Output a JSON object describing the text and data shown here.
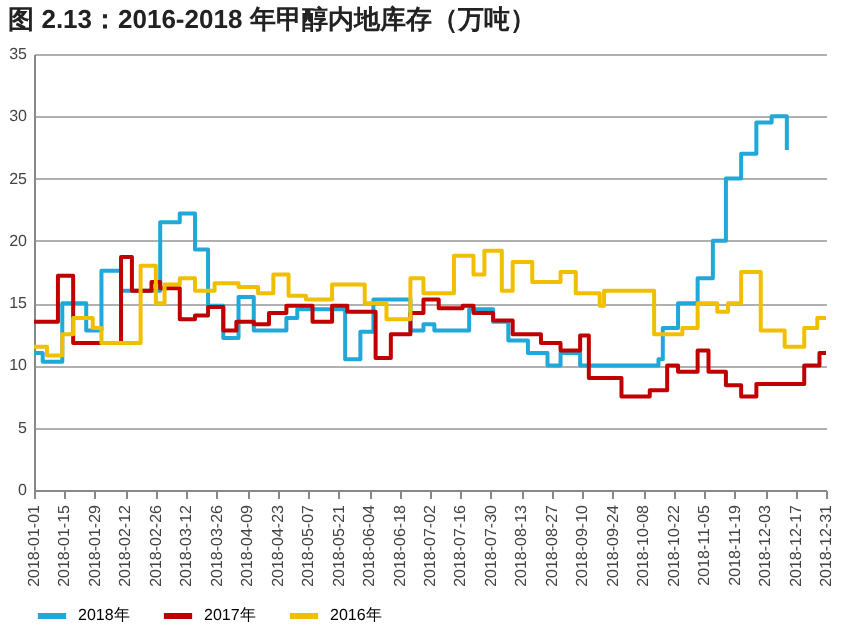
{
  "chart_data": {
    "type": "step",
    "title": "图 2.13：2016-2018 年甲醇内地库存（万吨）",
    "xlim": [
      "2018-01-01",
      "2018-12-31"
    ],
    "xticks": [
      "2018-01-01",
      "2018-01-15",
      "2018-01-29",
      "2018-02-12",
      "2018-02-26",
      "2018-03-12",
      "2018-03-26",
      "2018-04-09",
      "2018-04-23",
      "2018-05-07",
      "2018-05-21",
      "2018-06-04",
      "2018-06-18",
      "2018-07-02",
      "2018-07-16",
      "2018-07-30",
      "2018-08-13",
      "2018-08-27",
      "2018-09-10",
      "2018-09-24",
      "2018-10-08",
      "2018-10-22",
      "2018-11-05",
      "2018-11-19",
      "2018-12-03",
      "2018-12-17",
      "2018-12-31"
    ],
    "ylim": [
      0,
      35
    ],
    "yticks": [
      0,
      5,
      10,
      15,
      20,
      25,
      30,
      35
    ],
    "grid": "y",
    "legend": "bottom",
    "series": [
      {
        "name": "2018年",
        "color": "#1fa8d8",
        "x": [
          "2018-01-01",
          "2018-01-05",
          "2018-01-14",
          "2018-01-25",
          "2018-02-01",
          "2018-02-10",
          "2018-02-28",
          "2018-03-09",
          "2018-03-16",
          "2018-03-22",
          "2018-03-29",
          "2018-04-05",
          "2018-04-12",
          "2018-04-27",
          "2018-05-02",
          "2018-05-24",
          "2018-05-31",
          "2018-06-06",
          "2018-06-23",
          "2018-06-29",
          "2018-07-04",
          "2018-07-20",
          "2018-07-31",
          "2018-08-07",
          "2018-08-16",
          "2018-08-25",
          "2018-08-31",
          "2018-09-09",
          "2018-10-15",
          "2018-10-17",
          "2018-10-24",
          "2018-11-02",
          "2018-11-09",
          "2018-11-15",
          "2018-11-22",
          "2018-11-29",
          "2018-12-06",
          "2018-12-12",
          "2018-12-13"
        ],
        "values": [
          11,
          10.3,
          15,
          12.8,
          17.6,
          16,
          21.5,
          22.2,
          19.3,
          14.8,
          12.2,
          15.5,
          12.8,
          13.8,
          14.5,
          10.5,
          12.7,
          15.3,
          12.8,
          13.3,
          12.8,
          14.5,
          13.5,
          12,
          11,
          10,
          11,
          10,
          10.5,
          13,
          15,
          17,
          20,
          25,
          27,
          29.5,
          30,
          30,
          27.3
        ]
      },
      {
        "name": "2017年",
        "color": "#c00000",
        "x": [
          "2018-01-01",
          "2018-01-12",
          "2018-01-19",
          "2018-02-10",
          "2018-02-15",
          "2018-02-24",
          "2018-02-28",
          "2018-03-09",
          "2018-03-16",
          "2018-03-22",
          "2018-03-29",
          "2018-04-04",
          "2018-04-12",
          "2018-04-19",
          "2018-04-27",
          "2018-05-09",
          "2018-05-18",
          "2018-05-25",
          "2018-06-07",
          "2018-06-14",
          "2018-06-23",
          "2018-06-29",
          "2018-07-06",
          "2018-07-17",
          "2018-07-22",
          "2018-07-31",
          "2018-08-09",
          "2018-08-22",
          "2018-08-31",
          "2018-09-09",
          "2018-09-13",
          "2018-09-28",
          "2018-10-11",
          "2018-10-19",
          "2018-10-24",
          "2018-11-02",
          "2018-11-07",
          "2018-11-15",
          "2018-11-22",
          "2018-11-29",
          "2018-12-21",
          "2018-12-28",
          "2018-12-31"
        ],
        "values": [
          13.5,
          17.2,
          11.8,
          18.7,
          16,
          16.7,
          16.2,
          13.7,
          14,
          14.7,
          12.8,
          13.5,
          13.3,
          14.2,
          14.8,
          13.5,
          14.8,
          14.3,
          10.6,
          12.5,
          14.2,
          15.3,
          14.6,
          14.8,
          14.2,
          13.6,
          12.5,
          11.8,
          11.2,
          12.4,
          9,
          7.5,
          8,
          10,
          9.5,
          11.2,
          9.5,
          8.4,
          7.5,
          8.5,
          10,
          11,
          11
        ]
      },
      {
        "name": "2016年",
        "color": "#f0c000",
        "x": [
          "2018-01-01",
          "2018-01-07",
          "2018-01-14",
          "2018-01-19",
          "2018-01-28",
          "2018-02-01",
          "2018-02-19",
          "2018-02-26",
          "2018-03-02",
          "2018-03-09",
          "2018-03-16",
          "2018-03-25",
          "2018-04-05",
          "2018-04-14",
          "2018-04-21",
          "2018-04-28",
          "2018-05-06",
          "2018-05-18",
          "2018-06-02",
          "2018-06-12",
          "2018-06-23",
          "2018-06-29",
          "2018-07-13",
          "2018-07-22",
          "2018-07-27",
          "2018-08-04",
          "2018-08-09",
          "2018-08-18",
          "2018-08-31",
          "2018-09-07",
          "2018-09-18",
          "2018-09-20",
          "2018-10-13",
          "2018-10-26",
          "2018-11-02",
          "2018-11-11",
          "2018-11-16",
          "2018-11-22",
          "2018-12-01",
          "2018-12-12",
          "2018-12-21",
          "2018-12-27",
          "2018-12-31"
        ],
        "values": [
          11.5,
          10.8,
          12.5,
          13.8,
          13,
          11.8,
          18,
          15,
          16.5,
          17,
          16,
          16.6,
          16.3,
          15.8,
          17.3,
          15.6,
          15.3,
          16.5,
          15,
          13.7,
          17,
          15.8,
          18.8,
          17.3,
          19.2,
          16,
          18.3,
          16.7,
          17.5,
          15.8,
          14.8,
          16,
          12.5,
          13,
          15,
          14.3,
          15,
          17.5,
          12.8,
          11.5,
          13,
          13.8,
          13.8
        ]
      }
    ]
  }
}
